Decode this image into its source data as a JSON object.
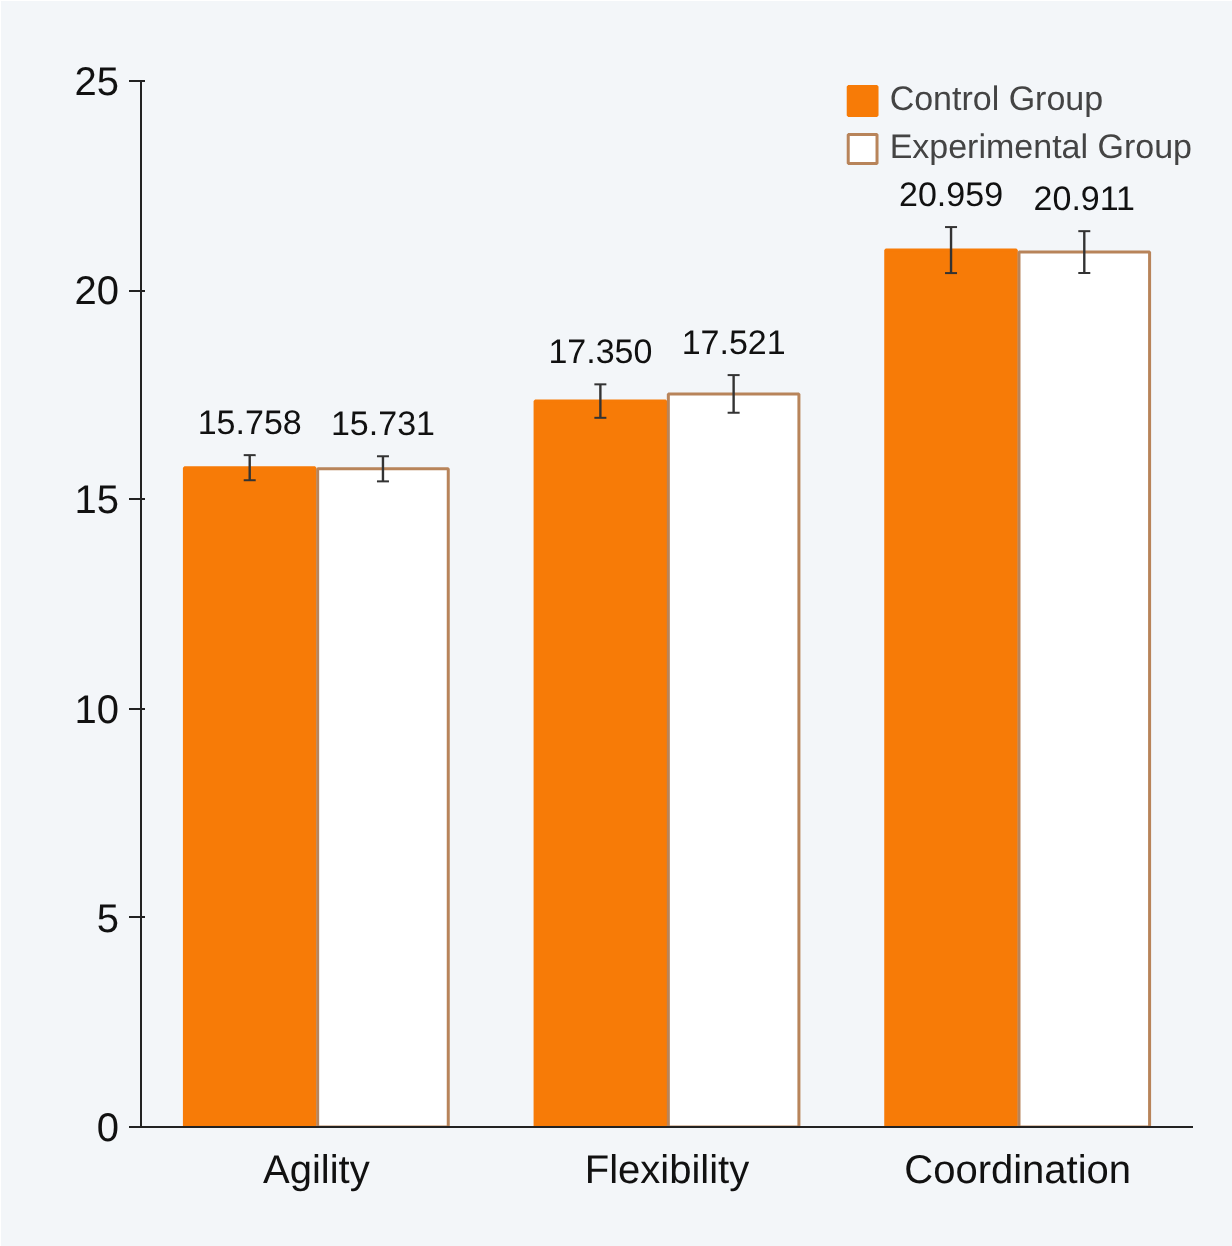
{
  "chart_data": {
    "type": "bar",
    "categories": [
      "Agility",
      "Flexibility",
      "Coordination"
    ],
    "series": [
      {
        "name": "Control Group",
        "color": "#f77b07",
        "values": [
          15.758,
          17.35,
          20.959
        ],
        "errors": [
          0.3,
          0.4,
          0.55
        ],
        "value_labels": [
          "15.758",
          "17.350",
          "20.959"
        ]
      },
      {
        "name": "Experimental Group",
        "color": "#ffffff",
        "values": [
          15.731,
          17.521,
          20.911
        ],
        "errors": [
          0.3,
          0.45,
          0.5
        ],
        "value_labels": [
          "15.731",
          "17.521",
          "20.911"
        ]
      }
    ],
    "ylim": [
      0,
      25
    ],
    "yticks": [
      0,
      5,
      10,
      15,
      20,
      25
    ],
    "grid": false,
    "legend": "top right"
  }
}
